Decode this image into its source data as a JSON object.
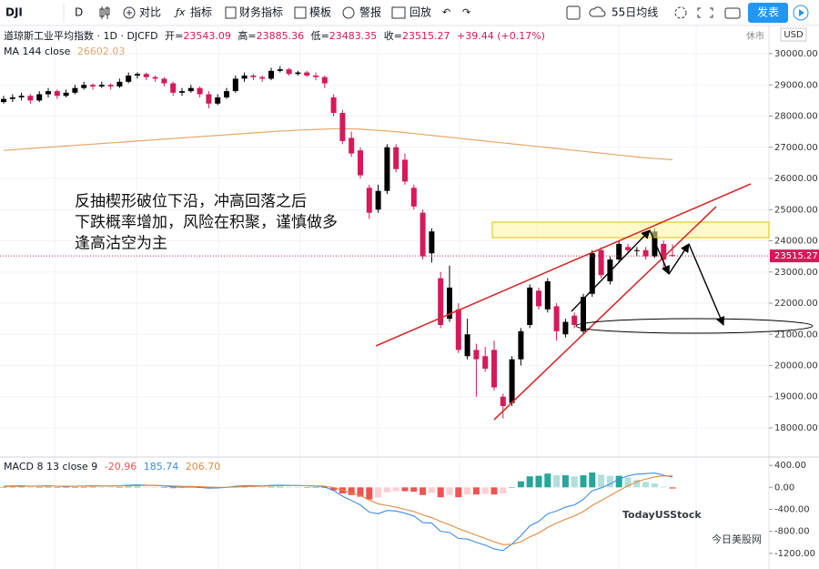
{
  "toolbar": {
    "symbol": "DJI",
    "interval": "D",
    "items": [
      "对比",
      "指标",
      "财务指标",
      "模板",
      "警报",
      "回放"
    ],
    "layout": "55日均线",
    "publish": "发表"
  },
  "legend": {
    "title": "道琼斯工业平均指数 · 1D · DJCFD",
    "ohlc_labels": [
      "开=",
      "高=",
      "低=",
      "收="
    ],
    "change": "+39.44 (+0.17%)",
    "status": "休市",
    "currency": "USD",
    "ma_label": "MA 144 close",
    "macd_label": "MACD 8 13 close 9"
  },
  "annotation": [
    "反抽楔形破位下沿，冲高回落之后",
    "下跌概率增加，风险在积聚，谨慎做多",
    "逢高沽空为主"
  ],
  "watermark": {
    "brand": "TodayUSStock",
    "sub": "今日美股网"
  },
  "chart_data": {
    "type": "candlestick",
    "candles": [
      [
        28450,
        28650,
        28400,
        28550
      ],
      [
        28550,
        28700,
        28450,
        28600
      ],
      [
        28600,
        28750,
        28500,
        28650
      ],
      [
        28650,
        28700,
        28400,
        28500
      ],
      [
        28500,
        28800,
        28450,
        28700
      ],
      [
        28700,
        28900,
        28600,
        28800
      ],
      [
        28800,
        28850,
        28550,
        28650
      ],
      [
        28650,
        28850,
        28600,
        28750
      ],
      [
        28750,
        29000,
        28700,
        28900
      ],
      [
        28900,
        29100,
        28850,
        29000
      ],
      [
        29000,
        29050,
        28850,
        28950
      ],
      [
        28950,
        29100,
        28900,
        29000
      ],
      [
        29000,
        29050,
        28850,
        28950
      ],
      [
        28950,
        29200,
        28900,
        29100
      ],
      [
        29100,
        29400,
        29050,
        29300
      ],
      [
        29300,
        29400,
        29200,
        29350
      ],
      [
        29350,
        29400,
        29150,
        29250
      ],
      [
        29250,
        29300,
        29100,
        29200
      ],
      [
        29200,
        29250,
        28950,
        29050
      ],
      [
        29050,
        29100,
        28650,
        28750
      ],
      [
        28750,
        28900,
        28650,
        28800
      ],
      [
        28800,
        29000,
        28750,
        28900
      ],
      [
        28900,
        28950,
        28600,
        28700
      ],
      [
        28700,
        28800,
        28250,
        28400
      ],
      [
        28400,
        28700,
        28350,
        28600
      ],
      [
        28600,
        28900,
        28550,
        28800
      ],
      [
        28800,
        29300,
        28750,
        29200
      ],
      [
        29200,
        29400,
        29100,
        29300
      ],
      [
        29300,
        29350,
        29150,
        29250
      ],
      [
        29250,
        29300,
        29100,
        29200
      ],
      [
        29200,
        29550,
        29150,
        29450
      ],
      [
        29450,
        29600,
        29400,
        29500
      ],
      [
        29500,
        29550,
        29300,
        29350
      ],
      [
        29350,
        29450,
        29300,
        29400
      ],
      [
        29400,
        29450,
        29250,
        29300
      ],
      [
        29300,
        29400,
        29150,
        29250
      ],
      [
        29250,
        29300,
        28900,
        29050
      ],
      [
        28600,
        28700,
        28000,
        28100
      ],
      [
        28100,
        28200,
        27100,
        27200
      ],
      [
        27300,
        27500,
        26700,
        26800
      ],
      [
        26900,
        27000,
        26000,
        26100
      ],
      [
        25700,
        25800,
        24700,
        24900
      ],
      [
        25000,
        25800,
        24900,
        25600
      ],
      [
        25600,
        27100,
        25500,
        27000
      ],
      [
        27000,
        27100,
        26200,
        26300
      ],
      [
        26600,
        26800,
        25800,
        25900
      ],
      [
        25700,
        25800,
        25000,
        25100
      ],
      [
        24900,
        25000,
        23400,
        23500
      ],
      [
        23600,
        24400,
        23300,
        24300
      ],
      [
        22800,
        23000,
        21200,
        21300
      ],
      [
        21500,
        23200,
        21400,
        22500
      ],
      [
        21800,
        22000,
        20400,
        20500
      ],
      [
        20300,
        21500,
        20200,
        21000
      ],
      [
        20500,
        20700,
        19000,
        20200
      ],
      [
        20300,
        20600,
        19800,
        19900
      ],
      [
        20500,
        20800,
        19200,
        19300
      ],
      [
        19000,
        19100,
        18300,
        18700
      ],
      [
        18800,
        20300,
        18700,
        20200
      ],
      [
        20200,
        21200,
        20000,
        21100
      ],
      [
        21300,
        22600,
        21200,
        22500
      ],
      [
        22400,
        22500,
        21800,
        21900
      ],
      [
        21800,
        22800,
        21700,
        22700
      ],
      [
        21900,
        22000,
        20800,
        21100
      ],
      [
        21000,
        21500,
        20900,
        21400
      ],
      [
        21600,
        21700,
        21200,
        21300
      ],
      [
        21100,
        22300,
        21000,
        22200
      ],
      [
        22300,
        23700,
        22200,
        23600
      ],
      [
        23700,
        23800,
        22800,
        22900
      ],
      [
        22700,
        23500,
        22600,
        23400
      ],
      [
        23400,
        24000,
        23300,
        23900
      ],
      [
        23800,
        23900,
        23600,
        23700
      ],
      [
        23700,
        23800,
        23500,
        23700
      ],
      [
        23700,
        23800,
        23400,
        23500
      ],
      [
        23500,
        24400,
        23450,
        24300
      ],
      [
        23900,
        24000,
        23100,
        23400
      ],
      [
        23543.09,
        23885.36,
        23483.35,
        23515.27
      ]
    ],
    "ma": [
      26900,
      26920,
      26940,
      26960,
      26980,
      27000,
      27020,
      27040,
      27060,
      27080,
      27100,
      27120,
      27140,
      27160,
      27180,
      27200,
      27220,
      27240,
      27260,
      27280,
      27300,
      27320,
      27340,
      27360,
      27380,
      27400,
      27420,
      27440,
      27460,
      27480,
      27500,
      27520,
      27530,
      27550,
      27560,
      27570,
      27580,
      27590,
      27600,
      27590,
      27580,
      27560,
      27540,
      27520,
      27500,
      27470,
      27440,
      27410,
      27380,
      27350,
      27320,
      27290,
      27260,
      27230,
      27200,
      27170,
      27140,
      27110,
      27080,
      27050,
      27020,
      26990,
      26960,
      26930,
      26900,
      26870,
      26840,
      26810,
      26780,
      26750,
      26720,
      26690,
      26660,
      26640,
      26620,
      26602.03
    ],
    "ylim": [
      17124,
      30847
    ],
    "yticks": [
      {
        "value": 18000,
        "label": "18000.00"
      },
      {
        "value": 19000,
        "label": "19000.00"
      },
      {
        "value": 20000,
        "label": "20000.00"
      },
      {
        "value": 21000,
        "label": "21000.00"
      },
      {
        "value": 22000,
        "label": "22000.00"
      },
      {
        "value": 23000,
        "label": "23000.00"
      },
      {
        "value": 24000,
        "label": "24000.00"
      },
      {
        "value": 25000,
        "label": "25000.00"
      },
      {
        "value": 26000,
        "label": "26000.00"
      },
      {
        "value": 27000,
        "label": "27000.00"
      },
      {
        "value": 28000,
        "label": "28000.00"
      },
      {
        "value": 29000,
        "label": "29000.00"
      },
      {
        "value": 30000,
        "label": "30000.00"
      }
    ],
    "colors": {
      "up": "#000000",
      "down": "#d6195a",
      "ma": "#e3a86b"
    }
  },
  "macd": {
    "type": "macd",
    "macd": [
      20,
      25,
      30,
      20,
      25,
      30,
      20,
      15,
      20,
      25,
      30,
      28,
      25,
      30,
      40,
      45,
      40,
      35,
      25,
      10,
      5,
      8,
      0,
      -15,
      -10,
      0,
      20,
      30,
      30,
      28,
      35,
      40,
      35,
      33,
      28,
      22,
      10,
      -60,
      -160,
      -240,
      -320,
      -450,
      -480,
      -420,
      -430,
      -470,
      -520,
      -640,
      -650,
      -800,
      -820,
      -930,
      -940,
      -1000,
      -1050,
      -1120,
      -1150,
      -1030,
      -880,
      -700,
      -620,
      -480,
      -430,
      -360,
      -320,
      -220,
      -60,
      -10,
      60,
      150,
      210,
      240,
      250,
      260,
      220,
      185.74
    ],
    "signal": [
      15,
      17,
      20,
      20,
      21,
      23,
      22,
      20,
      20,
      21,
      23,
      24,
      24,
      25,
      29,
      33,
      35,
      35,
      32,
      25,
      19,
      16,
      12,
      5,
      1,
      1,
      7,
      14,
      19,
      22,
      26,
      30,
      31,
      32,
      31,
      28,
      22,
      -5,
      -50,
      -100,
      -150,
      -230,
      -300,
      -330,
      -360,
      -400,
      -440,
      -500,
      -550,
      -620,
      -680,
      -750,
      -810,
      -870,
      -930,
      -990,
      -1040,
      -1035,
      -990,
      -900,
      -830,
      -730,
      -650,
      -580,
      -520,
      -440,
      -330,
      -240,
      -150,
      -60,
      30,
      100,
      150,
      190,
      208,
      206.7
    ],
    "histogram": [
      5,
      8,
      10,
      0,
      4,
      7,
      -2,
      -5,
      0,
      4,
      7,
      4,
      1,
      5,
      11,
      12,
      5,
      0,
      -7,
      -15,
      -14,
      -8,
      -12,
      -20,
      -11,
      -1,
      13,
      16,
      11,
      6,
      9,
      10,
      4,
      1,
      -3,
      -6,
      -12,
      -55,
      -110,
      -140,
      -170,
      -220,
      -180,
      -90,
      -70,
      -70,
      -80,
      -140,
      -100,
      -180,
      -140,
      -180,
      -130,
      -130,
      -120,
      -130,
      -110,
      5,
      110,
      200,
      210,
      250,
      220,
      220,
      200,
      220,
      270,
      230,
      210,
      210,
      180,
      140,
      100,
      70,
      12,
      -20.96
    ],
    "value_labels": [
      "-20.96",
      "185.74",
      "206.70"
    ],
    "ylim": [
      -1435,
      535
    ],
    "yticks": [
      {
        "value": 400,
        "label": "400.00"
      },
      {
        "value": 0,
        "label": "0.00"
      },
      {
        "value": -400,
        "label": "-400.00"
      },
      {
        "value": -800,
        "label": "-800.00"
      },
      {
        "value": -1200,
        "label": "-1200.00"
      }
    ],
    "colors": {
      "macd": "#3d8fe0",
      "signal": "#e08a3c",
      "hist": [
        "#26a69a",
        "#b2dfdb",
        "#ef5350",
        "#ffcdd2"
      ]
    }
  }
}
